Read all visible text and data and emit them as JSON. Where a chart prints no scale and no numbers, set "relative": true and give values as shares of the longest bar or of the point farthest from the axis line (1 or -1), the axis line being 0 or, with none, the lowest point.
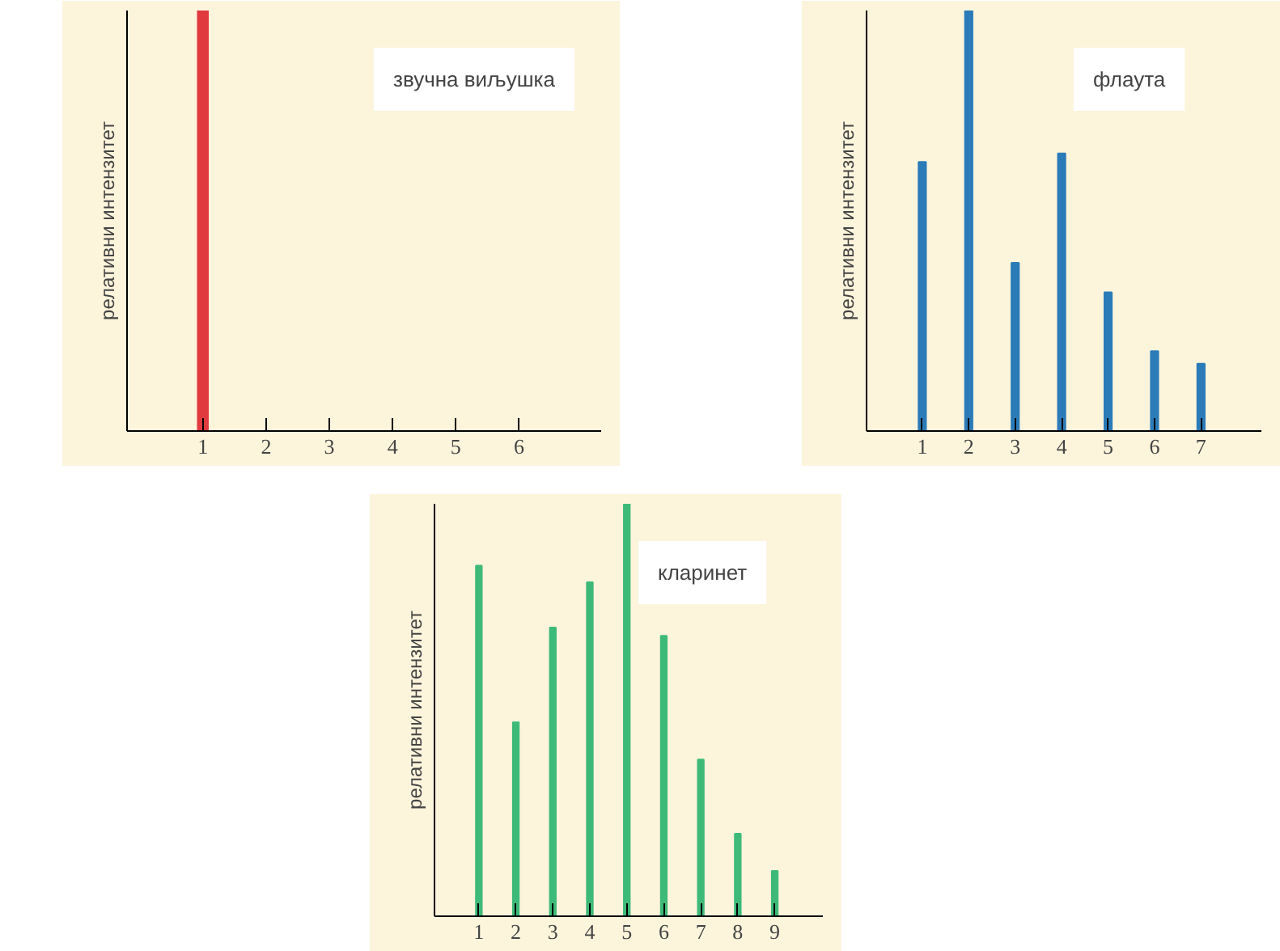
{
  "chart_data": [
    {
      "type": "bar",
      "title": "звучна виљушка",
      "ylabel": "релативни интензитет",
      "categories": [
        "1",
        "2",
        "3",
        "4",
        "5",
        "6"
      ],
      "relative": true,
      "grid": false,
      "series": [
        {
          "color": "#e03a3e",
          "values": [
            1,
            0,
            0,
            0,
            0,
            0
          ]
        }
      ]
    },
    {
      "type": "bar",
      "title": "флаута",
      "ylabel": "релативни интензитет",
      "categories": [
        "1",
        "2",
        "3",
        "4",
        "5",
        "6",
        "7"
      ],
      "relative": true,
      "grid": false,
      "series": [
        {
          "color": "#2b7bb9",
          "values": [
            0.64,
            1,
            0.4,
            0.66,
            0.33,
            0.19,
            0.16
          ]
        }
      ]
    },
    {
      "type": "bar",
      "title": "кларинет",
      "ylabel": "релативни интензитет",
      "categories": [
        "1",
        "2",
        "3",
        "4",
        "5",
        "6",
        "7",
        "8",
        "9"
      ],
      "relative": true,
      "grid": false,
      "series": [
        {
          "color": "#3dba78",
          "values": [
            0.85,
            0.47,
            0.7,
            0.81,
            1,
            0.68,
            0.38,
            0.2,
            0.11
          ]
        }
      ]
    }
  ]
}
